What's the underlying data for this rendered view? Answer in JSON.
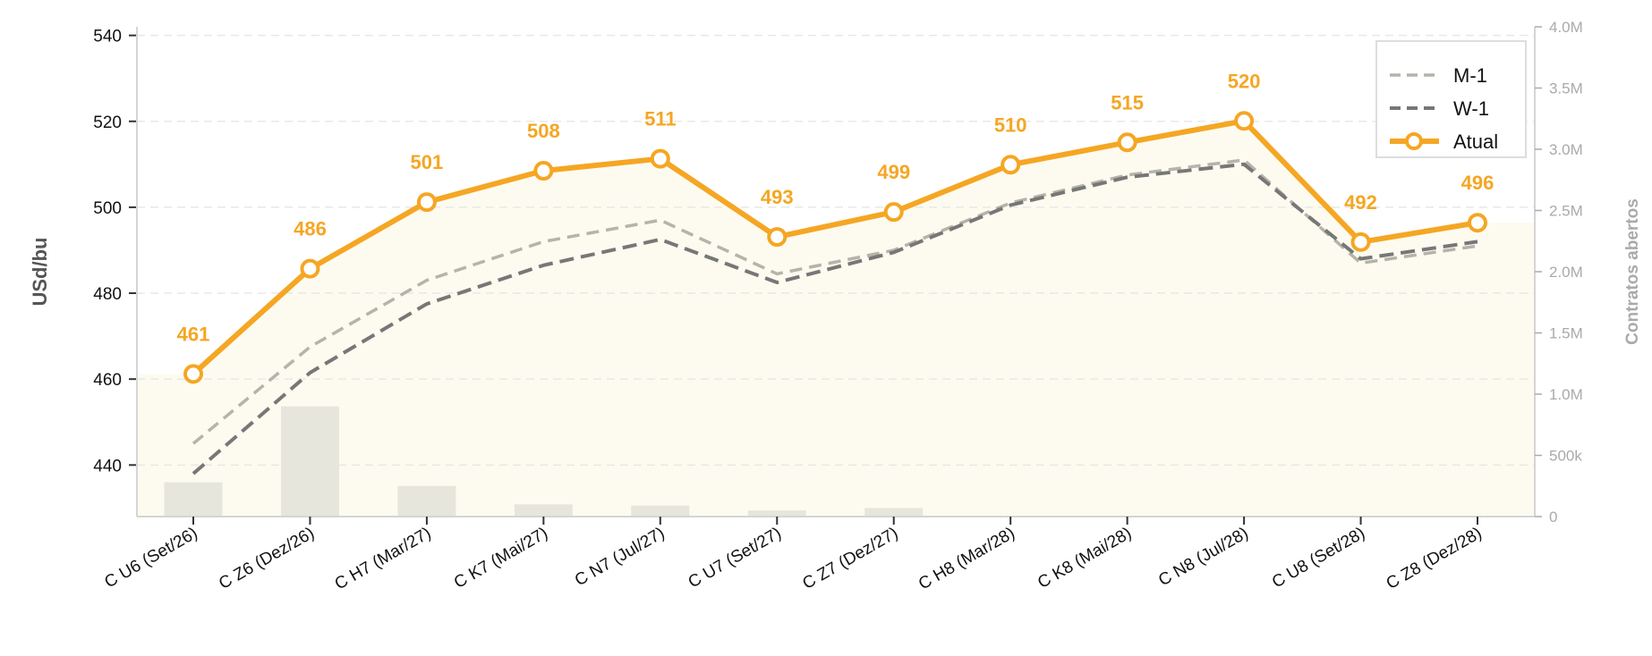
{
  "chart_data": {
    "type": "line",
    "ylabel": "USd/bu",
    "y2label": "Contratos abertos",
    "ylim": [
      428,
      542
    ],
    "y2lim": [
      0,
      4000000
    ],
    "yticks": [
      440,
      460,
      480,
      500,
      520,
      540
    ],
    "y2ticks": [
      {
        "value": 0,
        "label": "0"
      },
      {
        "value": 500000,
        "label": "500k"
      },
      {
        "value": 1000000,
        "label": "1.0M"
      },
      {
        "value": 1500000,
        "label": "1.5M"
      },
      {
        "value": 2000000,
        "label": "2.0M"
      },
      {
        "value": 2500000,
        "label": "2.5M"
      },
      {
        "value": 3000000,
        "label": "3.0M"
      },
      {
        "value": 3500000,
        "label": "3.5M"
      },
      {
        "value": 4000000,
        "label": "4.0M"
      }
    ],
    "grid": true,
    "legend": "top-right",
    "categories": [
      "C U6 (Set/26)",
      "C Z6 (Dez/26)",
      "C H7 (Mar/27)",
      "C K7 (Mai/27)",
      "C N7 (Jul/27)",
      "C U7 (Set/27)",
      "C Z7 (Dez/27)",
      "C H8 (Mar/28)",
      "C K8 (Mai/28)",
      "C N8 (Jul/28)",
      "C U8 (Set/28)",
      "C Z8 (Dez/28)"
    ],
    "series": [
      {
        "name": "M-1",
        "style": "dashed",
        "color": "#b4b4aa",
        "values": [
          445,
          467.5,
          483,
          492,
          497,
          484.5,
          490,
          501,
          507.5,
          511,
          487,
          491
        ]
      },
      {
        "name": "W-1",
        "style": "dashed",
        "color": "#777777",
        "values": [
          438,
          461.5,
          477.5,
          486.5,
          492.5,
          482.5,
          489.5,
          500.5,
          507,
          510,
          488,
          492
        ]
      },
      {
        "name": "Atual",
        "style": "solid-markers",
        "color": "#f5a623",
        "values": [
          461.2,
          485.7,
          501.2,
          508.5,
          511.3,
          493.1,
          498.9,
          509.9,
          515.1,
          520.1,
          491.9,
          496.4
        ]
      }
    ],
    "data_labels": [
      "461",
      "486",
      "501",
      "508",
      "511",
      "493",
      "499",
      "510",
      "515",
      "520",
      "492",
      "496"
    ],
    "open_interest": [
      280000,
      900000,
      250000,
      100000,
      90000,
      50000,
      70000,
      0,
      0,
      0,
      0,
      0
    ],
    "colors": {
      "accent": "#f5a623",
      "band": "#fdfbf0",
      "bars": "#e6e6dc"
    }
  }
}
